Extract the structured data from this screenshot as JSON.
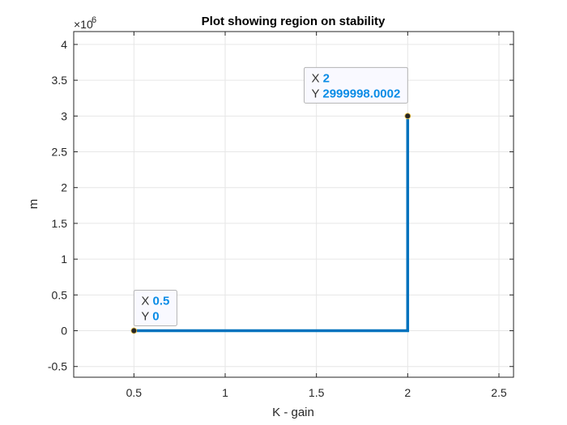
{
  "chart_data": {
    "type": "line",
    "title": "Plot showing region on stability",
    "xlabel": "K - gain",
    "ylabel": "m",
    "xlim": [
      0.17,
      2.58
    ],
    "ylim": [
      -650000,
      4180000
    ],
    "y_exponent_label": "×10",
    "y_exponent_power": "6",
    "grid": true,
    "x_ticks": [
      0.5,
      1,
      1.5,
      2,
      2.5
    ],
    "x_tick_labels": [
      "0.5",
      "1",
      "1.5",
      "2",
      "2.5"
    ],
    "y_ticks": [
      -500000,
      0,
      500000,
      1000000,
      1500000,
      2000000,
      2500000,
      3000000,
      3500000,
      4000000
    ],
    "y_tick_labels": [
      "-0.5",
      "0",
      "0.5",
      "1",
      "1.5",
      "2",
      "2.5",
      "3",
      "3.5",
      "4"
    ],
    "series": [
      {
        "x": [
          0.5,
          2,
          2
        ],
        "y": [
          0,
          0,
          2999998.0002
        ],
        "color": "#0072bd"
      }
    ],
    "datatips": [
      {
        "x": 0.5,
        "y": 0,
        "x_key": "X",
        "y_key": "Y",
        "x_text": "0.5",
        "y_text": "0",
        "placement": "top-right"
      },
      {
        "x": 2,
        "y": 2999998.0002,
        "x_key": "X",
        "y_key": "Y",
        "x_text": "2",
        "y_text": "2999998.0002",
        "placement": "top-left"
      }
    ]
  }
}
